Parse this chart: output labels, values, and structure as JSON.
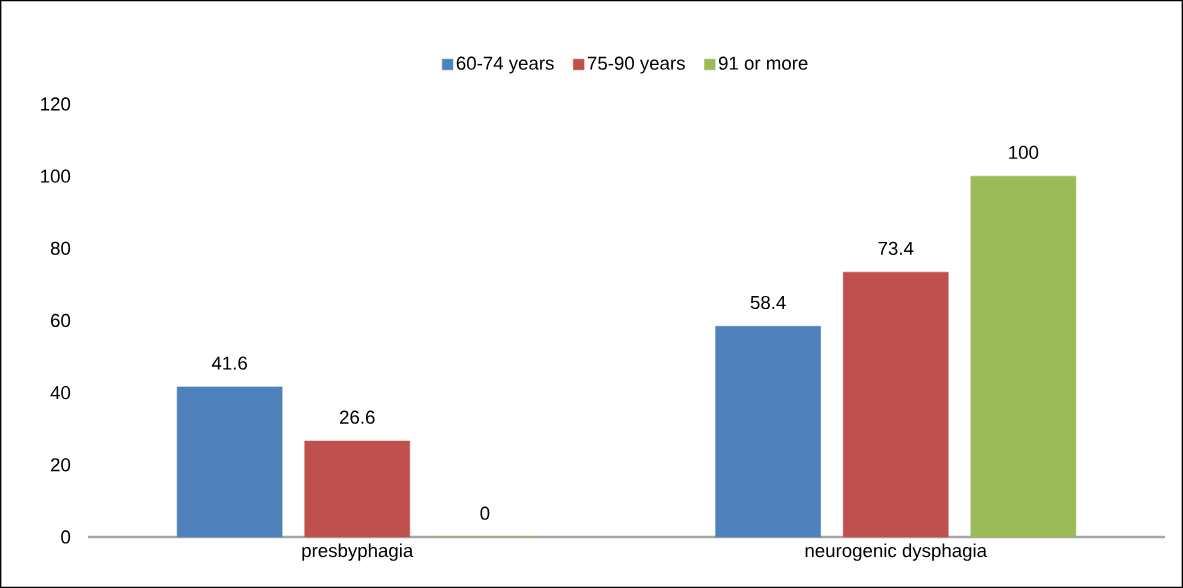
{
  "chart_data": {
    "type": "bar",
    "categories": [
      "presbyphagia",
      "neurogenic dysphagia"
    ],
    "series": [
      {
        "name": "60-74 years",
        "color": "#4f81bd",
        "values": [
          41.6,
          58.4
        ]
      },
      {
        "name": "75-90 years",
        "color": "#c0504d",
        "values": [
          26.6,
          73.4
        ]
      },
      {
        "name": "91 or more",
        "color": "#9bbb59",
        "values": [
          0,
          100
        ]
      }
    ],
    "ylim": [
      0,
      120
    ],
    "yticks": [
      0,
      20,
      40,
      60,
      80,
      100,
      120
    ],
    "data_labels": true,
    "legend": "top"
  }
}
